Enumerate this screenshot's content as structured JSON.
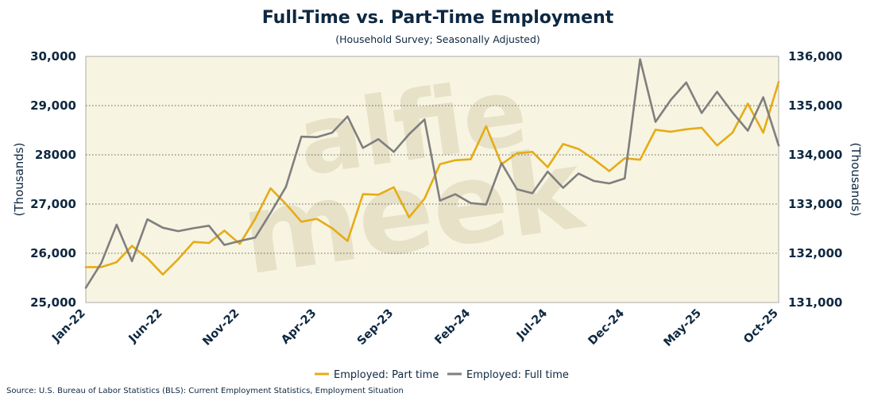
{
  "chart_data": {
    "type": "line",
    "title": "Full-Time vs. Part-Time Employment",
    "subtitle": "(Household Survey; Seasonally Adjusted)",
    "ylabel_left": "(Thousands)",
    "ylabel_right": "(Thousands)",
    "ylim_left": [
      25000,
      30000
    ],
    "ylim_right": [
      131000,
      136000
    ],
    "yticks_left": [
      "25,000",
      "26,000",
      "27,000",
      "28000",
      "29,000",
      "30,000"
    ],
    "yticks_left_values": [
      25000,
      26000,
      27000,
      28000,
      29000,
      30000
    ],
    "yticks_right": [
      "131,000",
      "132,000",
      "133,000",
      "134,000",
      "135,000",
      "136,000"
    ],
    "yticks_right_values": [
      131000,
      132000,
      133000,
      134000,
      135000,
      136000
    ],
    "xtick_labels": [
      "Jan-22",
      "Jun-22",
      "Nov-22",
      "Apr-23",
      "Sep-23",
      "Feb-24",
      "Jul-24",
      "Dec-24",
      "May-25",
      "Oct-25"
    ],
    "xtick_indices": [
      0,
      5,
      10,
      15,
      20,
      25,
      30,
      35,
      40,
      45
    ],
    "n_points": 46,
    "grid": "horizontal dotted",
    "legend_position": "bottom-center",
    "colors": {
      "part_time": "#e5ac16",
      "full_time": "#7f7f7f",
      "plot_bg": "#f7f4e1",
      "text": "#0e2841"
    },
    "series": [
      {
        "name": "Employed: Part time",
        "axis": "left",
        "values": [
          25720,
          25720,
          25820,
          26150,
          25900,
          25570,
          25880,
          26230,
          26210,
          26460,
          26190,
          26700,
          27320,
          27000,
          26640,
          26700,
          26510,
          26250,
          27200,
          27190,
          27340,
          26730,
          27110,
          27810,
          27890,
          27910,
          28580,
          27810,
          28030,
          28060,
          27750,
          28220,
          28120,
          27910,
          27670,
          27930,
          27900,
          28510,
          28470,
          28520,
          28550,
          28190,
          28450,
          29040,
          28450,
          29480
        ]
      },
      {
        "name": "Employed: Full time",
        "axis": "right",
        "values": [
          131300,
          131800,
          132580,
          131840,
          132690,
          132520,
          132450,
          132510,
          132560,
          132170,
          132250,
          132320,
          132820,
          133350,
          134370,
          134360,
          134450,
          134780,
          134140,
          134320,
          134060,
          134420,
          134720,
          133070,
          133200,
          133020,
          132990,
          133830,
          133300,
          133220,
          133660,
          133330,
          133620,
          133470,
          133420,
          133520,
          135940,
          134670,
          135120,
          135470,
          134850,
          135280,
          134860,
          134490,
          135170,
          134190
        ]
      }
    ]
  },
  "source": "Source: U.S. Bureau of Labor Statistics (BLS): Current Employment Statistics, Employment Situation"
}
